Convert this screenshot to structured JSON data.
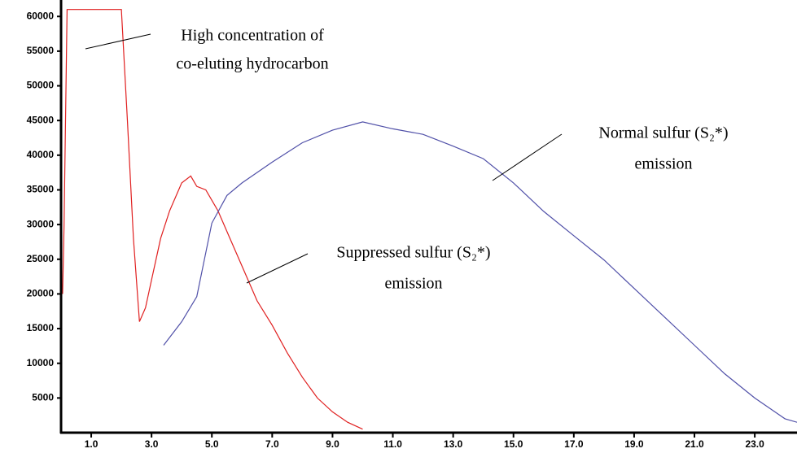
{
  "chart_data": {
    "type": "line",
    "xlim": [
      0,
      24.4
    ],
    "ylim": [
      0,
      61200
    ],
    "xticks": [
      {
        "value": 1,
        "label": "1.0"
      },
      {
        "value": 3,
        "label": "3.0"
      },
      {
        "value": 5,
        "label": "5.0"
      },
      {
        "value": 7,
        "label": "7.0"
      },
      {
        "value": 9,
        "label": "9.0"
      },
      {
        "value": 11,
        "label": "11.0"
      },
      {
        "value": 13,
        "label": "13.0"
      },
      {
        "value": 15,
        "label": "15.0"
      },
      {
        "value": 17,
        "label": "17.0"
      },
      {
        "value": 19,
        "label": "19.0"
      },
      {
        "value": 21,
        "label": "21.0"
      },
      {
        "value": 23,
        "label": "23.0"
      }
    ],
    "yticks": [
      5000,
      10000,
      15000,
      20000,
      25000,
      30000,
      35000,
      40000,
      45000,
      50000,
      55000,
      60000
    ],
    "grid": false,
    "series": [
      {
        "color": "#e02020",
        "x": [
          0.05,
          0.1,
          0.2,
          0.5,
          1.0,
          1.5,
          2.0,
          2.2,
          2.4,
          2.6,
          2.8,
          3.0,
          3.3,
          3.6,
          4.0,
          4.3,
          4.5,
          4.8,
          5.2,
          5.6,
          6.0,
          6.5,
          7.0,
          7.5,
          8.0,
          8.5,
          9.0,
          9.5,
          10.0
        ],
        "values": [
          20000,
          30000,
          61000,
          61000,
          61000,
          61000,
          61000,
          45000,
          28000,
          16000,
          18000,
          22000,
          28000,
          32000,
          36000,
          37000,
          35500,
          35000,
          32000,
          28000,
          24000,
          19000,
          15500,
          11500,
          8000,
          5000,
          3000,
          1500,
          500
        ]
      },
      {
        "color": "#5050a8",
        "x": [
          3.4,
          4,
          4.5,
          5,
          5.5,
          6,
          7,
          8,
          9,
          10,
          11,
          12,
          13,
          14,
          15,
          16,
          17,
          18,
          19,
          20,
          21,
          22,
          23,
          24,
          24.4
        ],
        "values": [
          12600,
          16000,
          19600,
          30200,
          34200,
          36000,
          39000,
          41800,
          43600,
          44800,
          43800,
          43000,
          41300,
          39500,
          36000,
          31900,
          28400,
          24900,
          20800,
          16700,
          12600,
          8500,
          5000,
          2000,
          1500
        ]
      }
    ],
    "annotations": [
      {
        "lines": [
          "High concentration of",
          "co-eluting hydrocarbon"
        ]
      },
      {
        "lines": [
          "Normal sulfur (S₂*)",
          "emission"
        ]
      },
      {
        "lines": [
          "Suppressed sulfur (S₂*)",
          "emission"
        ]
      }
    ]
  }
}
